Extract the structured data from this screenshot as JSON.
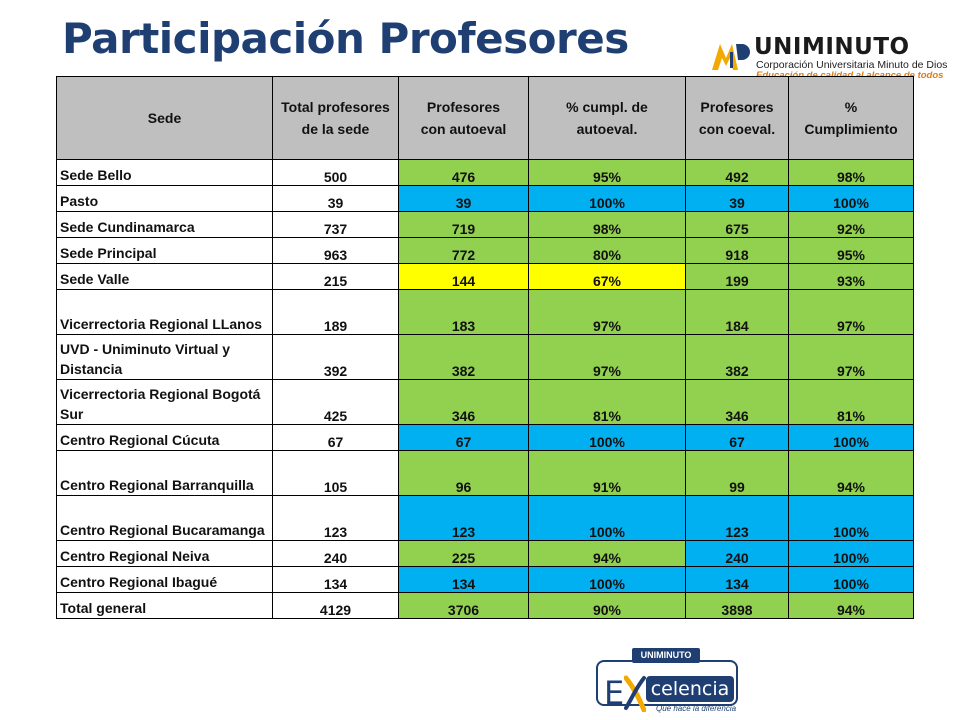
{
  "title": "Participación Profesores",
  "logo": {
    "mark": "MD",
    "brand": "UNIMINUTO",
    "subtitle": "Corporación Universitaria Minuto de Dios",
    "tagline": "Educación de calidad al alcance de todos"
  },
  "table": {
    "headers": [
      "Sede",
      "Total profesores\nde la sede",
      "Profesores\ncon autoeval",
      "% cumpl. de\nautoeval.",
      "Profesores\ncon coeval.",
      "%\nCumplimiento"
    ],
    "rows": [
      {
        "sede": "Sede Bello",
        "total": "500",
        "autoeval": "476",
        "pct_autoeval": "95%",
        "coeval": "492",
        "pct_cumplimiento": "98%"
      },
      {
        "sede": "Pasto",
        "total": "39",
        "autoeval": "39",
        "pct_autoeval": "100%",
        "coeval": "39",
        "pct_cumplimiento": "100%"
      },
      {
        "sede": "Sede Cundinamarca",
        "total": "737",
        "autoeval": "719",
        "pct_autoeval": "98%",
        "coeval": "675",
        "pct_cumplimiento": "92%"
      },
      {
        "sede": "Sede Principal",
        "total": "963",
        "autoeval": "772",
        "pct_autoeval": "80%",
        "coeval": "918",
        "pct_cumplimiento": "95%"
      },
      {
        "sede": "Sede Valle",
        "total": "215",
        "autoeval": "144",
        "pct_autoeval": "67%",
        "coeval": "199",
        "pct_cumplimiento": "93%"
      },
      {
        "sede": "Vicerrectoria Regional LLanos",
        "total": "189",
        "autoeval": "183",
        "pct_autoeval": "97%",
        "coeval": "184",
        "pct_cumplimiento": "97%"
      },
      {
        "sede": "UVD - Uniminuto Virtual y Distancia",
        "total": "392",
        "autoeval": "382",
        "pct_autoeval": "97%",
        "coeval": "382",
        "pct_cumplimiento": "97%"
      },
      {
        "sede": "Vicerrectoria Regional Bogotá Sur",
        "total": "425",
        "autoeval": "346",
        "pct_autoeval": "81%",
        "coeval": "346",
        "pct_cumplimiento": "81%"
      },
      {
        "sede": "Centro Regional Cúcuta",
        "total": "67",
        "autoeval": "67",
        "pct_autoeval": "100%",
        "coeval": "67",
        "pct_cumplimiento": "100%"
      },
      {
        "sede": "Centro Regional Barranquilla",
        "total": "105",
        "autoeval": "96",
        "pct_autoeval": "91%",
        "coeval": "99",
        "pct_cumplimiento": "94%"
      },
      {
        "sede": "Centro Regional Bucaramanga",
        "total": "123",
        "autoeval": "123",
        "pct_autoeval": "100%",
        "coeval": "123",
        "pct_cumplimiento": "100%"
      },
      {
        "sede": "Centro Regional Neiva",
        "total": "240",
        "autoeval": "225",
        "pct_autoeval": "94%",
        "coeval": "240",
        "pct_cumplimiento": "100%"
      },
      {
        "sede": "Centro Regional Ibagué",
        "total": "134",
        "autoeval": "134",
        "pct_autoeval": "100%",
        "coeval": "134",
        "pct_cumplimiento": "100%"
      },
      {
        "sede": "Total general",
        "total": "4129",
        "autoeval": "3706",
        "pct_autoeval": "90%",
        "coeval": "3898",
        "pct_cumplimiento": "94%"
      }
    ]
  },
  "colors": {
    "green": "#92d050",
    "blue": "#00b0f0",
    "yellow": "#ffff00",
    "header_gray": "#bfbfbf",
    "title_blue": "#1f3f73"
  },
  "footer_logo": {
    "top_tag": "UNIMINUTO",
    "letter": "E",
    "word": "celencia",
    "slogan": "Que hace la diferencia"
  }
}
